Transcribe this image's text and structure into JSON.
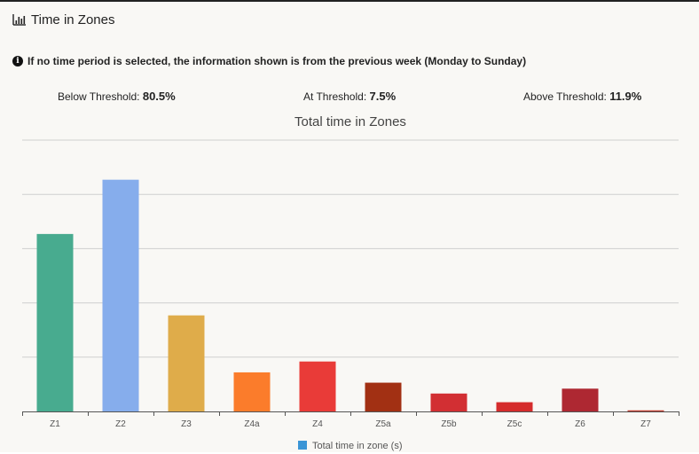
{
  "header": {
    "title": "Time in Zones",
    "icon": "bar-chart-icon"
  },
  "notice": {
    "icon": "info-icon",
    "text": "If no time period is selected, the information shown is from the previous week (Monday to Sunday)"
  },
  "stats": {
    "below": {
      "label": "Below Threshold:",
      "value": "80.5%"
    },
    "at": {
      "label": "At Threshold:",
      "value": "7.5%"
    },
    "above": {
      "label": "Above Threshold:",
      "value": "11.9%"
    }
  },
  "chart_data": {
    "type": "bar",
    "title": "Total time in Zones",
    "categories": [
      "Z1",
      "Z2",
      "Z3",
      "Z4a",
      "Z4",
      "Z5a",
      "Z5b",
      "Z5c",
      "Z6",
      "Z7"
    ],
    "series": [
      {
        "name": "Total time in zone (s)",
        "values": [
          3.27,
          4.27,
          1.77,
          0.72,
          0.92,
          0.53,
          0.33,
          0.17,
          0.42,
          0.02
        ],
        "colors": [
          "#48ab8f",
          "#86adec",
          "#dfac4a",
          "#fb7c2b",
          "#e93b38",
          "#a23013",
          "#d22f33",
          "#d52c2c",
          "#ae2832",
          "#c0392b"
        ]
      }
    ],
    "ylim": [
      0,
      5
    ],
    "grid": true,
    "y_tick_labels_shown": false,
    "legend": {
      "position": "bottom",
      "label": "Total time in zone (s)",
      "color": "#3a95d6"
    }
  }
}
